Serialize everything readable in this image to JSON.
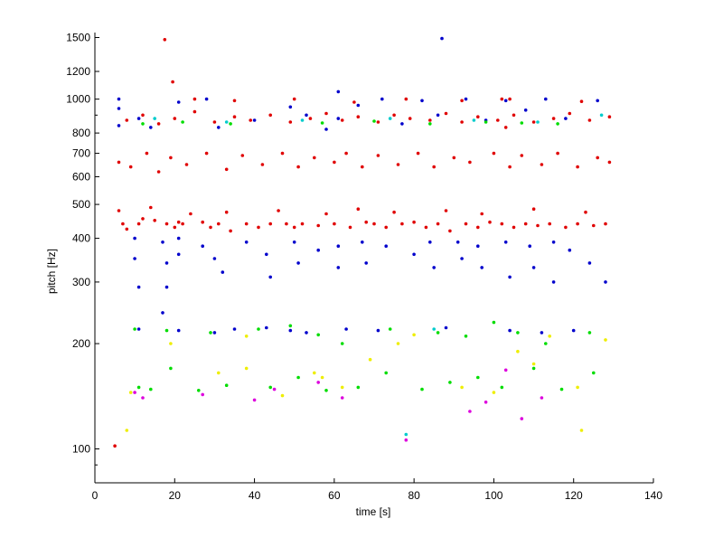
{
  "chart_data": {
    "type": "scatter",
    "title": "",
    "xlabel": "time [s]",
    "ylabel": "pitch [Hz]",
    "xlim": [
      0,
      140
    ],
    "ylim": [
      80,
      1550
    ],
    "yscale": "log",
    "grid": false,
    "legend": "none",
    "x_ticks": [
      0,
      20,
      40,
      60,
      80,
      100,
      120,
      140
    ],
    "y_ticks": [
      100,
      200,
      300,
      400,
      500,
      600,
      700,
      800,
      1000,
      1200,
      1500
    ],
    "series": [
      {
        "color": "#e00000",
        "points": [
          [
            5.0,
            102
          ],
          [
            17.5,
            1480
          ],
          [
            19.5,
            1120
          ],
          [
            7,
            440
          ],
          [
            8,
            425
          ],
          [
            11,
            440
          ],
          [
            12,
            455
          ],
          [
            15,
            450
          ],
          [
            18,
            440
          ],
          [
            20,
            430
          ],
          [
            21,
            445
          ],
          [
            22,
            440
          ],
          [
            27,
            445
          ],
          [
            29,
            430
          ],
          [
            31,
            440
          ],
          [
            34,
            420
          ],
          [
            38,
            440
          ],
          [
            41,
            430
          ],
          [
            44,
            440
          ],
          [
            48,
            440
          ],
          [
            50,
            430
          ],
          [
            52,
            440
          ],
          [
            56,
            435
          ],
          [
            60,
            440
          ],
          [
            64,
            430
          ],
          [
            68,
            445
          ],
          [
            70,
            440
          ],
          [
            73,
            430
          ],
          [
            77,
            440
          ],
          [
            80,
            445
          ],
          [
            83,
            430
          ],
          [
            86,
            440
          ],
          [
            89,
            420
          ],
          [
            93,
            440
          ],
          [
            96,
            430
          ],
          [
            99,
            445
          ],
          [
            102,
            440
          ],
          [
            105,
            430
          ],
          [
            108,
            440
          ],
          [
            111,
            435
          ],
          [
            114,
            440
          ],
          [
            118,
            430
          ],
          [
            121,
            440
          ],
          [
            125,
            435
          ],
          [
            128,
            440
          ],
          [
            6,
            480
          ],
          [
            14,
            490
          ],
          [
            24,
            470
          ],
          [
            33,
            475
          ],
          [
            46,
            480
          ],
          [
            58,
            470
          ],
          [
            66,
            485
          ],
          [
            75,
            475
          ],
          [
            88,
            480
          ],
          [
            97,
            470
          ],
          [
            110,
            485
          ],
          [
            123,
            475
          ],
          [
            6,
            660
          ],
          [
            9,
            640
          ],
          [
            13,
            700
          ],
          [
            16,
            620
          ],
          [
            19,
            680
          ],
          [
            23,
            650
          ],
          [
            28,
            700
          ],
          [
            33,
            630
          ],
          [
            37,
            690
          ],
          [
            42,
            650
          ],
          [
            47,
            700
          ],
          [
            51,
            640
          ],
          [
            55,
            680
          ],
          [
            60,
            660
          ],
          [
            63,
            700
          ],
          [
            67,
            640
          ],
          [
            71,
            690
          ],
          [
            76,
            650
          ],
          [
            81,
            700
          ],
          [
            85,
            640
          ],
          [
            90,
            680
          ],
          [
            94,
            660
          ],
          [
            100,
            700
          ],
          [
            104,
            640
          ],
          [
            107,
            690
          ],
          [
            112,
            650
          ],
          [
            116,
            700
          ],
          [
            121,
            640
          ],
          [
            126,
            680
          ],
          [
            129,
            660
          ],
          [
            8,
            870
          ],
          [
            12,
            900
          ],
          [
            16,
            850
          ],
          [
            20,
            880
          ],
          [
            25,
            920
          ],
          [
            30,
            860
          ],
          [
            35,
            890
          ],
          [
            39,
            870
          ],
          [
            44,
            900
          ],
          [
            49,
            860
          ],
          [
            54,
            880
          ],
          [
            58,
            910
          ],
          [
            62,
            870
          ],
          [
            66,
            890
          ],
          [
            71,
            860
          ],
          [
            75,
            900
          ],
          [
            79,
            880
          ],
          [
            84,
            870
          ],
          [
            88,
            910
          ],
          [
            92,
            860
          ],
          [
            96,
            890
          ],
          [
            101,
            870
          ],
          [
            105,
            900
          ],
          [
            110,
            860
          ],
          [
            115,
            880
          ],
          [
            119,
            910
          ],
          [
            124,
            870
          ],
          [
            129,
            890
          ],
          [
            25,
            1000
          ],
          [
            35,
            990
          ],
          [
            50,
            1000
          ],
          [
            65,
            980
          ],
          [
            78,
            1000
          ],
          [
            92,
            990
          ],
          [
            104,
            1000
          ],
          [
            122,
            985
          ],
          [
            102,
            1000
          ],
          [
            103,
            830
          ]
        ]
      },
      {
        "color": "#0000cc",
        "points": [
          [
            87,
            1490
          ],
          [
            6,
            1000
          ],
          [
            6,
            940
          ],
          [
            6,
            840
          ],
          [
            11,
            880
          ],
          [
            14,
            830
          ],
          [
            21,
            980
          ],
          [
            28,
            1000
          ],
          [
            31,
            830
          ],
          [
            40,
            870
          ],
          [
            49,
            950
          ],
          [
            53,
            900
          ],
          [
            58,
            820
          ],
          [
            61,
            1050
          ],
          [
            61,
            880
          ],
          [
            66,
            960
          ],
          [
            72,
            1000
          ],
          [
            77,
            850
          ],
          [
            82,
            990
          ],
          [
            86,
            900
          ],
          [
            93,
            1000
          ],
          [
            98,
            870
          ],
          [
            103,
            990
          ],
          [
            108,
            930
          ],
          [
            113,
            1000
          ],
          [
            118,
            880
          ],
          [
            126,
            990
          ],
          [
            10,
            400
          ],
          [
            10,
            350
          ],
          [
            11,
            290
          ],
          [
            17,
            390
          ],
          [
            18,
            340
          ],
          [
            18,
            290
          ],
          [
            21,
            400
          ],
          [
            21,
            360
          ],
          [
            27,
            380
          ],
          [
            30,
            350
          ],
          [
            32,
            320
          ],
          [
            38,
            390
          ],
          [
            43,
            360
          ],
          [
            44,
            310
          ],
          [
            50,
            390
          ],
          [
            51,
            340
          ],
          [
            56,
            370
          ],
          [
            61,
            380
          ],
          [
            61,
            330
          ],
          [
            67,
            390
          ],
          [
            68,
            340
          ],
          [
            73,
            380
          ],
          [
            80,
            360
          ],
          [
            84,
            390
          ],
          [
            85,
            330
          ],
          [
            91,
            390
          ],
          [
            92,
            350
          ],
          [
            96,
            380
          ],
          [
            97,
            330
          ],
          [
            103,
            390
          ],
          [
            104,
            310
          ],
          [
            109,
            380
          ],
          [
            110,
            330
          ],
          [
            115,
            390
          ],
          [
            115,
            300
          ],
          [
            119,
            370
          ],
          [
            124,
            340
          ],
          [
            128,
            300
          ],
          [
            17,
            245
          ],
          [
            11,
            220
          ],
          [
            21,
            218
          ],
          [
            30,
            215
          ],
          [
            35,
            220
          ],
          [
            43,
            222
          ],
          [
            49,
            218
          ],
          [
            53,
            215
          ],
          [
            63,
            220
          ],
          [
            71,
            218
          ],
          [
            88,
            222
          ],
          [
            104,
            218
          ],
          [
            112,
            215
          ],
          [
            120,
            218
          ]
        ]
      },
      {
        "color": "#00dd00",
        "points": [
          [
            12,
            850
          ],
          [
            22,
            860
          ],
          [
            34,
            850
          ],
          [
            57,
            855
          ],
          [
            70,
            865
          ],
          [
            84,
            850
          ],
          [
            98,
            860
          ],
          [
            107,
            855
          ],
          [
            116,
            850
          ],
          [
            10,
            220
          ],
          [
            18,
            218
          ],
          [
            29,
            215
          ],
          [
            41,
            220
          ],
          [
            49,
            225
          ],
          [
            56,
            212
          ],
          [
            62,
            200
          ],
          [
            74,
            220
          ],
          [
            86,
            215
          ],
          [
            93,
            210
          ],
          [
            100,
            230
          ],
          [
            106,
            215
          ],
          [
            113,
            200
          ],
          [
            124,
            215
          ],
          [
            11,
            150
          ],
          [
            14,
            148
          ],
          [
            19,
            170
          ],
          [
            26,
            147
          ],
          [
            33,
            152
          ],
          [
            44,
            150
          ],
          [
            51,
            160
          ],
          [
            58,
            147
          ],
          [
            66,
            150
          ],
          [
            73,
            165
          ],
          [
            82,
            148
          ],
          [
            89,
            155
          ],
          [
            96,
            160
          ],
          [
            102,
            150
          ],
          [
            110,
            170
          ],
          [
            117,
            148
          ],
          [
            125,
            165
          ]
        ]
      },
      {
        "color": "#eeee00",
        "points": [
          [
            8,
            113
          ],
          [
            19,
            200
          ],
          [
            31,
            165
          ],
          [
            38,
            210
          ],
          [
            55,
            165
          ],
          [
            69,
            180
          ],
          [
            80,
            212
          ],
          [
            92,
            150
          ],
          [
            106,
            190
          ],
          [
            121,
            150
          ],
          [
            128,
            205
          ],
          [
            9,
            145
          ],
          [
            47,
            142
          ],
          [
            62,
            150
          ],
          [
            76,
            200
          ],
          [
            100,
            145
          ],
          [
            114,
            210
          ],
          [
            122,
            113
          ],
          [
            110,
            175
          ],
          [
            57,
            160
          ],
          [
            38,
            170
          ]
        ]
      },
      {
        "color": "#dd00dd",
        "points": [
          [
            10,
            145
          ],
          [
            12,
            140
          ],
          [
            27,
            143
          ],
          [
            40,
            138
          ],
          [
            62,
            140
          ],
          [
            78,
            106
          ],
          [
            94,
            128
          ],
          [
            98,
            136
          ],
          [
            103,
            168
          ],
          [
            107,
            122
          ],
          [
            112,
            140
          ],
          [
            56,
            155
          ],
          [
            45,
            148
          ]
        ]
      },
      {
        "color": "#00cccc",
        "points": [
          [
            15,
            880
          ],
          [
            33,
            860
          ],
          [
            52,
            870
          ],
          [
            74,
            880
          ],
          [
            95,
            870
          ],
          [
            111,
            860
          ],
          [
            127,
            900
          ],
          [
            78,
            110
          ],
          [
            85,
            220
          ]
        ]
      }
    ]
  }
}
